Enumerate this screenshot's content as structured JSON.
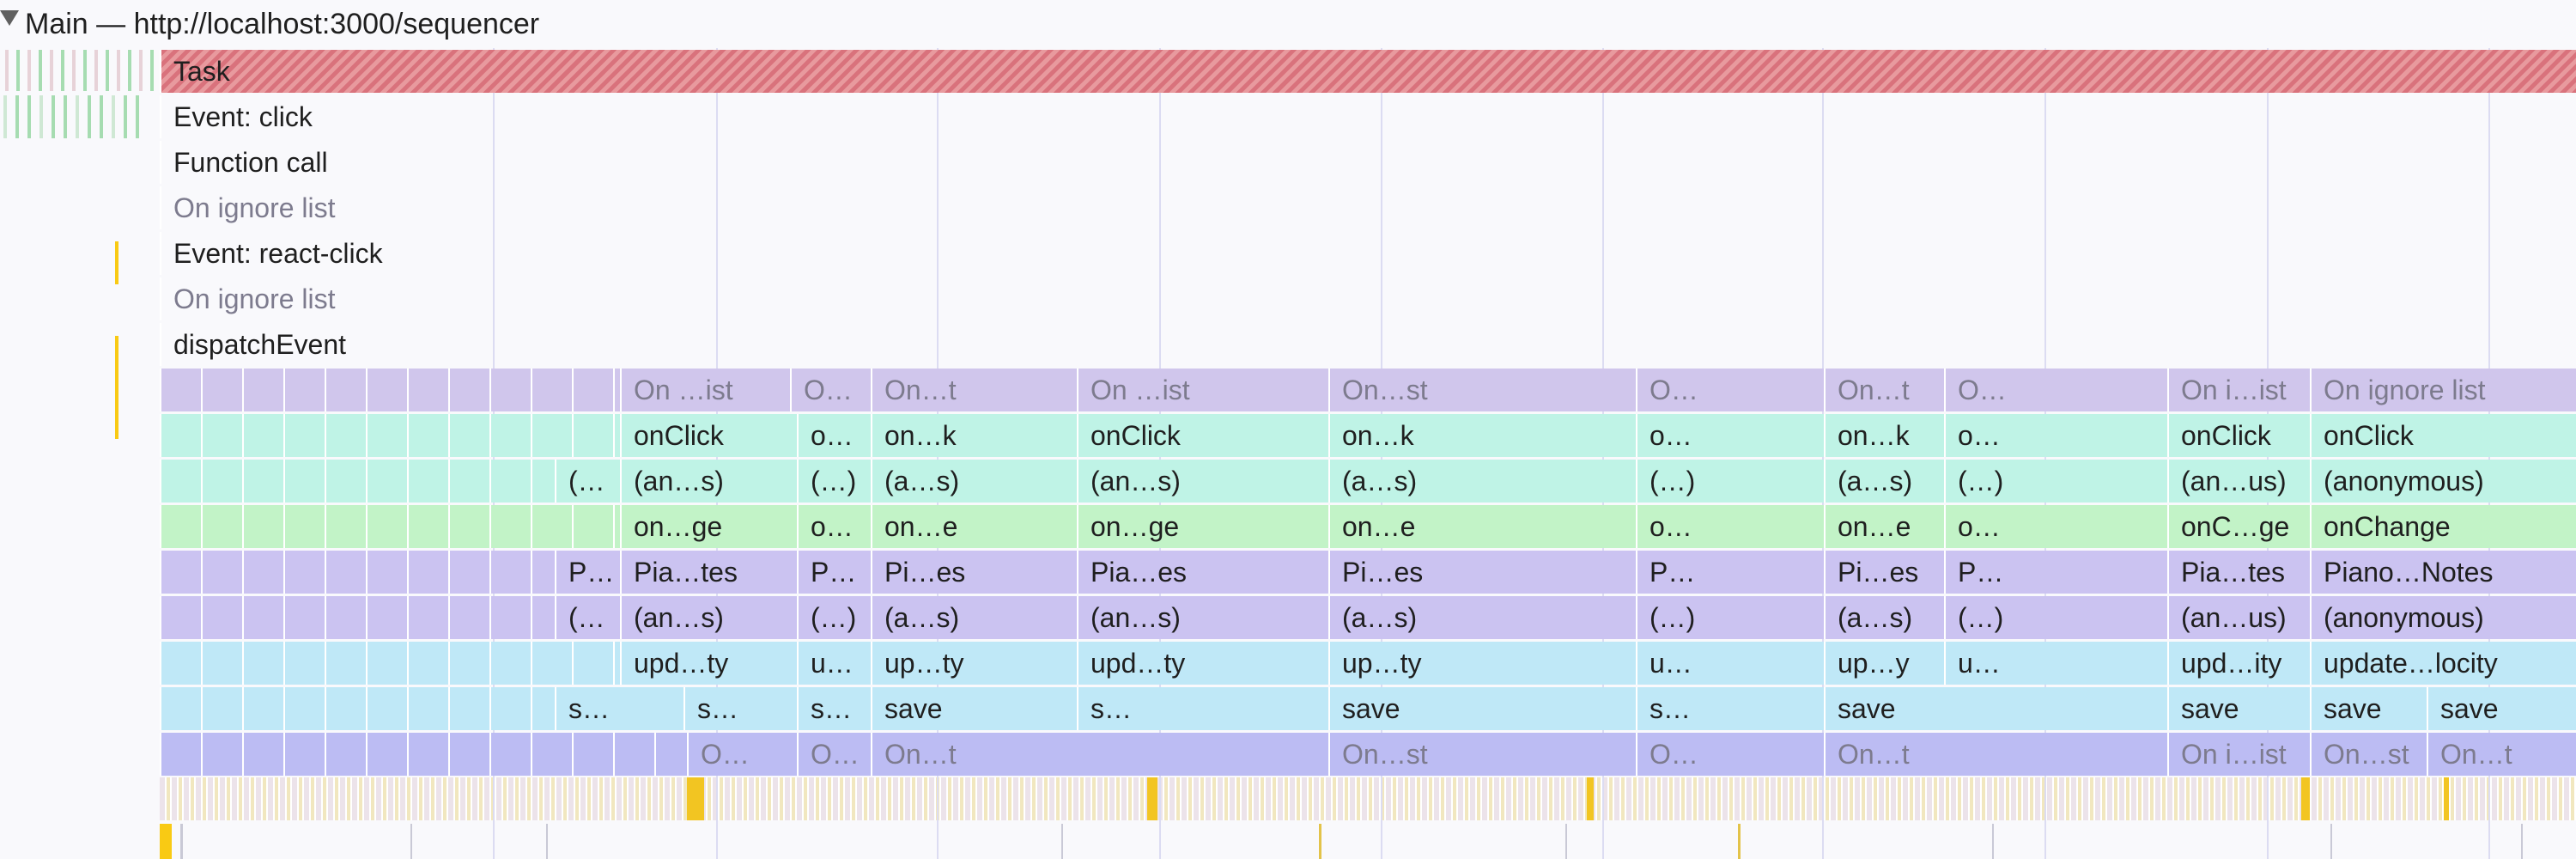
{
  "header": {
    "title": "Main — http://localhost:3000/sequencer"
  },
  "colors": {
    "task": "#e08890",
    "yellow": "#f9ca14",
    "ignore": "#d0c6ec",
    "teal": "#bff3e6",
    "green": "#c2f3c7",
    "purple": "#cbc3f1",
    "blue": "#bfe8f7",
    "periwinkle": "#bcbcf3"
  },
  "full_rows": [
    {
      "label": "Task",
      "color": "task",
      "ignored": false
    },
    {
      "label": "Event: click",
      "color": "yellow",
      "ignored": false
    },
    {
      "label": "Function call",
      "color": "yellow",
      "ignored": false
    },
    {
      "label": "On ignore list",
      "color": "ignore",
      "ignored": true
    },
    {
      "label": "Event: react-click",
      "color": "yellow",
      "ignored": false
    },
    {
      "label": "On ignore list",
      "color": "ignore",
      "ignored": true
    },
    {
      "label": "dispatchEvent",
      "color": "yellow",
      "ignored": false
    }
  ],
  "stack_rows": [
    {
      "color": "lav",
      "ignored": true,
      "labels": [
        "On …ist",
        "O…",
        "On…t",
        "On …ist",
        "On…st",
        "O…",
        "On…t",
        "O…",
        "On i…ist",
        "On ignore list"
      ]
    },
    {
      "color": "teal",
      "labels": [
        "onClick",
        "o…",
        "on…k",
        "onClick",
        "on…k",
        "o…",
        "on…k",
        "o…",
        "onClick",
        "onClick"
      ]
    },
    {
      "color": "teal",
      "labels": [
        "(…",
        "(an…s)",
        "(…)",
        "(a…s)",
        "(an…s)",
        "(a…s)",
        "(…)",
        "(a…s)",
        "(…)",
        "(an…us)",
        "(anonymous)"
      ]
    },
    {
      "color": "green",
      "labels": [
        "on…ge",
        "o…",
        "on…e",
        "on…ge",
        "on…e",
        "o…",
        "on…e",
        "o…",
        "onC…ge",
        "onChange"
      ]
    },
    {
      "color": "purp",
      "labels": [
        "P…",
        "Pia…tes",
        "P…",
        "Pi…es",
        "Pia…es",
        "Pi…es",
        "P…",
        "Pi…es",
        "P…",
        "Pia…tes",
        "Piano…Notes"
      ]
    },
    {
      "color": "purp",
      "labels": [
        "(…",
        "(an…s)",
        "(…)",
        "(a…s)",
        "(an…s)",
        "(a…s)",
        "(…)",
        "(a…s)",
        "(…)",
        "(an…us)",
        "(anonymous)"
      ]
    },
    {
      "color": "blue",
      "labels": [
        "upd…ty",
        "u…",
        "up…ty",
        "upd…ty",
        "up…ty",
        "u…",
        "up…y",
        "u…",
        "upd…ity",
        "update…locity"
      ]
    },
    {
      "color": "blue",
      "labels": [
        "s…",
        "s…",
        "s…",
        "save",
        "s…",
        "save",
        "s…",
        "save",
        "save",
        "save",
        "save"
      ]
    },
    {
      "color": "peri",
      "ignored": true,
      "labels": [
        "O…",
        "O…",
        "On…t",
        "On…st",
        "O…",
        "On…t",
        "On i…ist",
        "On…st",
        "On…t"
      ]
    }
  ]
}
